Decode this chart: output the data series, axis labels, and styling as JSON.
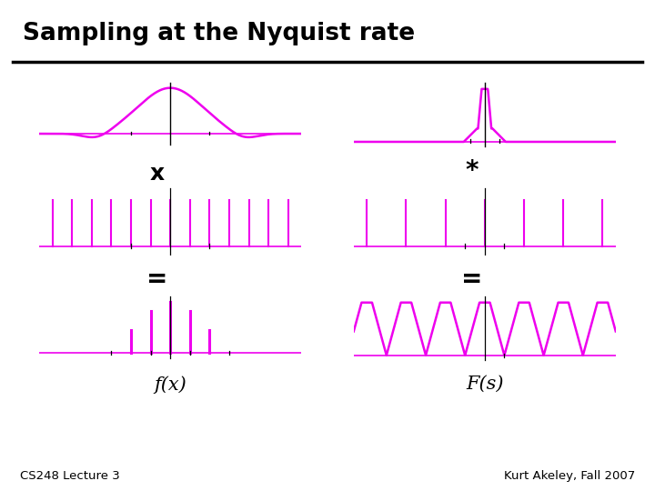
{
  "title": "Sampling at the Nyquist rate",
  "left_label": "f(x)",
  "right_label": "F(s)",
  "op1_left": "x",
  "op1_right": "*",
  "op2_left": "=",
  "op2_right": "=",
  "bottom_left": "CS248 Lecture 3",
  "bottom_right": "Kurt Akeley, Fall 2007",
  "magenta": "#EE00EE",
  "black": "#000000",
  "bg": "#FFFFFF"
}
